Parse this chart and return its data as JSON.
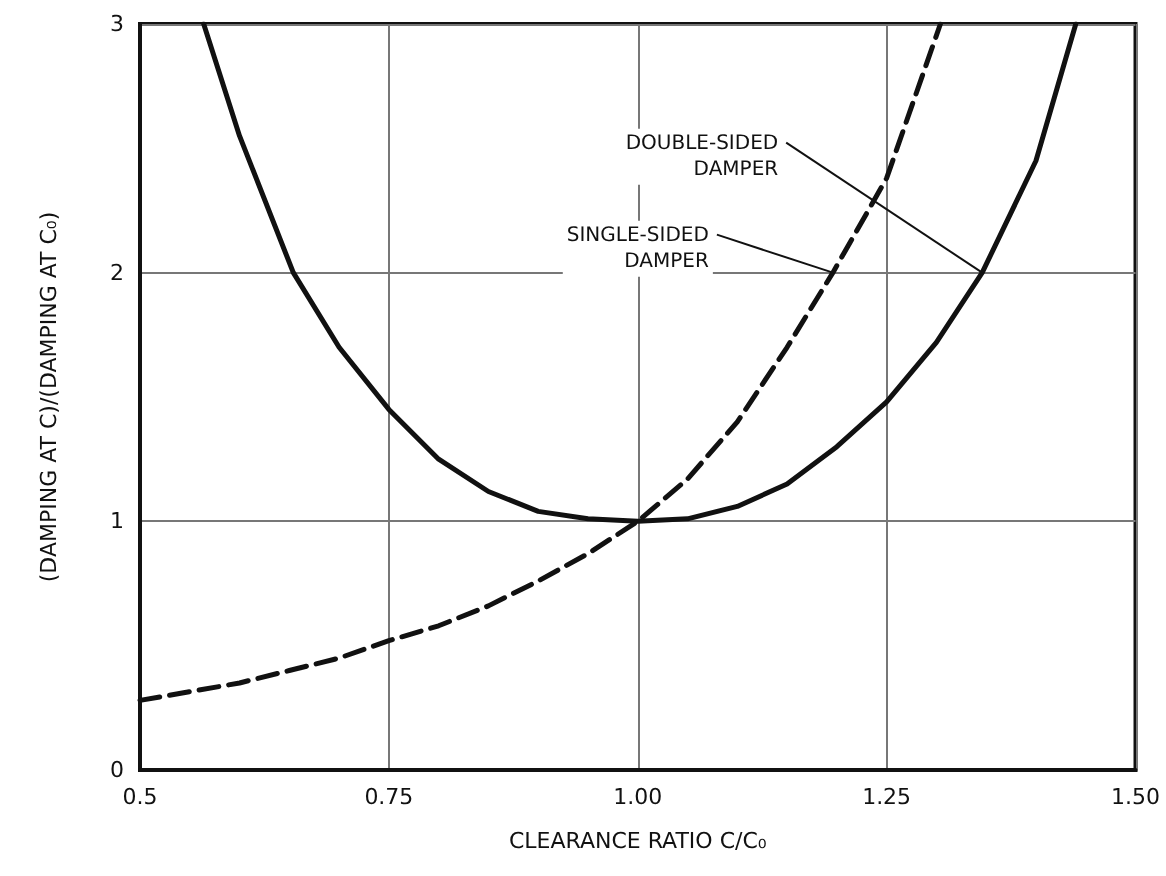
{
  "chart_data": {
    "type": "line",
    "xlabel": "CLEARANCE RATIO C/C₀",
    "ylabel": "(DAMPING AT C)/(DAMPING AT C₀)",
    "xlim": [
      0.5,
      1.5
    ],
    "xticks": [
      {
        "value": 0.5,
        "label": "0.5"
      },
      0.75,
      {
        "value": 1,
        "label": "1.00"
      },
      1.25,
      {
        "value": 1.5,
        "label": "1.50"
      }
    ],
    "ylim": [
      0,
      3
    ],
    "yticks": [
      0,
      1,
      2,
      3
    ],
    "grid": true,
    "marker": "none",
    "series": [
      {
        "color": "#111111",
        "line_style": "solid",
        "x": [
          0.564,
          0.6,
          0.654,
          0.7,
          0.75,
          0.8,
          0.85,
          0.9,
          0.95,
          1.0,
          1.05,
          1.1,
          1.15,
          1.2,
          1.25,
          1.3,
          1.346,
          1.4,
          1.44
        ],
        "values": [
          3,
          2.55,
          2,
          1.7,
          1.45,
          1.25,
          1.12,
          1.04,
          1.01,
          1.0,
          1.01,
          1.06,
          1.15,
          1.3,
          1.48,
          1.72,
          2,
          2.45,
          3
        ]
      },
      {
        "color": "#111111",
        "line_style": "dashed",
        "x": [
          0.5,
          0.6,
          0.65,
          0.7,
          0.75,
          0.8,
          0.85,
          0.9,
          0.95,
          1.0,
          1.05,
          1.1,
          1.15,
          1.196,
          1.25,
          1.304
        ],
        "values": [
          0.28,
          0.35,
          0.4,
          0.45,
          0.52,
          0.58,
          0.66,
          0.76,
          0.87,
          1.0,
          1.17,
          1.4,
          1.7,
          2,
          2.38,
          3
        ]
      }
    ],
    "annotations": [
      {
        "text": "DOUBLE-SIDED DAMPER",
        "x": 1.346,
        "y": 2
      },
      {
        "text": "SINGLE-SIDED DAMPER",
        "x": 1.196,
        "y": 2
      }
    ]
  }
}
